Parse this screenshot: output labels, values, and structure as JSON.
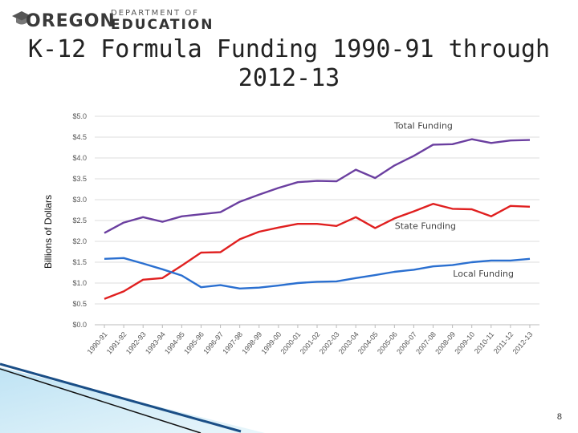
{
  "logo": {
    "oregon": "OREGON",
    "department": "DEPARTMENT OF",
    "education": "EDUCATION"
  },
  "title": "K-12 Formula Funding 1990-91 through 2012-13",
  "page_number": "8",
  "colors": {
    "total": "#6b3fa0",
    "state": "#e02020",
    "local": "#2a6fd0",
    "grid": "#dcdcdc",
    "axis_text": "#555555"
  },
  "chart_data": {
    "type": "line",
    "title": "K-12 Formula Funding 1990-91 through 2012-13",
    "xlabel": "",
    "ylabel": "Billions of Dollars",
    "ylim": [
      0,
      5
    ],
    "yticks": [
      "$0.0",
      "$0.5",
      "$1.0",
      "$1.5",
      "$2.0",
      "$2.5",
      "$3.0",
      "$3.5",
      "$4.0",
      "$4.5",
      "$5.0"
    ],
    "grid": true,
    "categories": [
      "1990-91",
      "1991-92",
      "1992-93",
      "1993-94",
      "1994-95",
      "1995-96",
      "1996-97",
      "1997-98",
      "1998-99",
      "1999-00",
      "2000-01",
      "2001-02",
      "2002-03",
      "2003-04",
      "2004-05",
      "2005-06",
      "2006-07",
      "2007-08",
      "2008-09",
      "2009-10",
      "2010-11",
      "2011-12",
      "2012-13"
    ],
    "series": [
      {
        "name": "Total Funding",
        "color": "#6b3fa0",
        "values": [
          2.2,
          2.45,
          2.58,
          2.47,
          2.6,
          2.65,
          2.7,
          2.95,
          3.12,
          3.28,
          3.42,
          3.45,
          3.44,
          3.72,
          3.52,
          3.82,
          4.05,
          4.32,
          4.33,
          4.45,
          4.36,
          4.42,
          4.43
        ]
      },
      {
        "name": "State Funding",
        "color": "#e02020",
        "values": [
          0.62,
          0.8,
          1.08,
          1.12,
          1.42,
          1.73,
          1.74,
          2.05,
          2.23,
          2.33,
          2.42,
          2.42,
          2.37,
          2.58,
          2.32,
          2.55,
          2.72,
          2.9,
          2.78,
          2.77,
          2.6,
          2.85,
          2.83
        ]
      },
      {
        "name": "Local Funding",
        "color": "#2a6fd0",
        "values": [
          1.58,
          1.6,
          1.47,
          1.33,
          1.18,
          0.9,
          0.95,
          0.87,
          0.89,
          0.94,
          1.0,
          1.03,
          1.04,
          1.12,
          1.19,
          1.27,
          1.32,
          1.4,
          1.43,
          1.5,
          1.54,
          1.54,
          1.58
        ]
      }
    ]
  }
}
